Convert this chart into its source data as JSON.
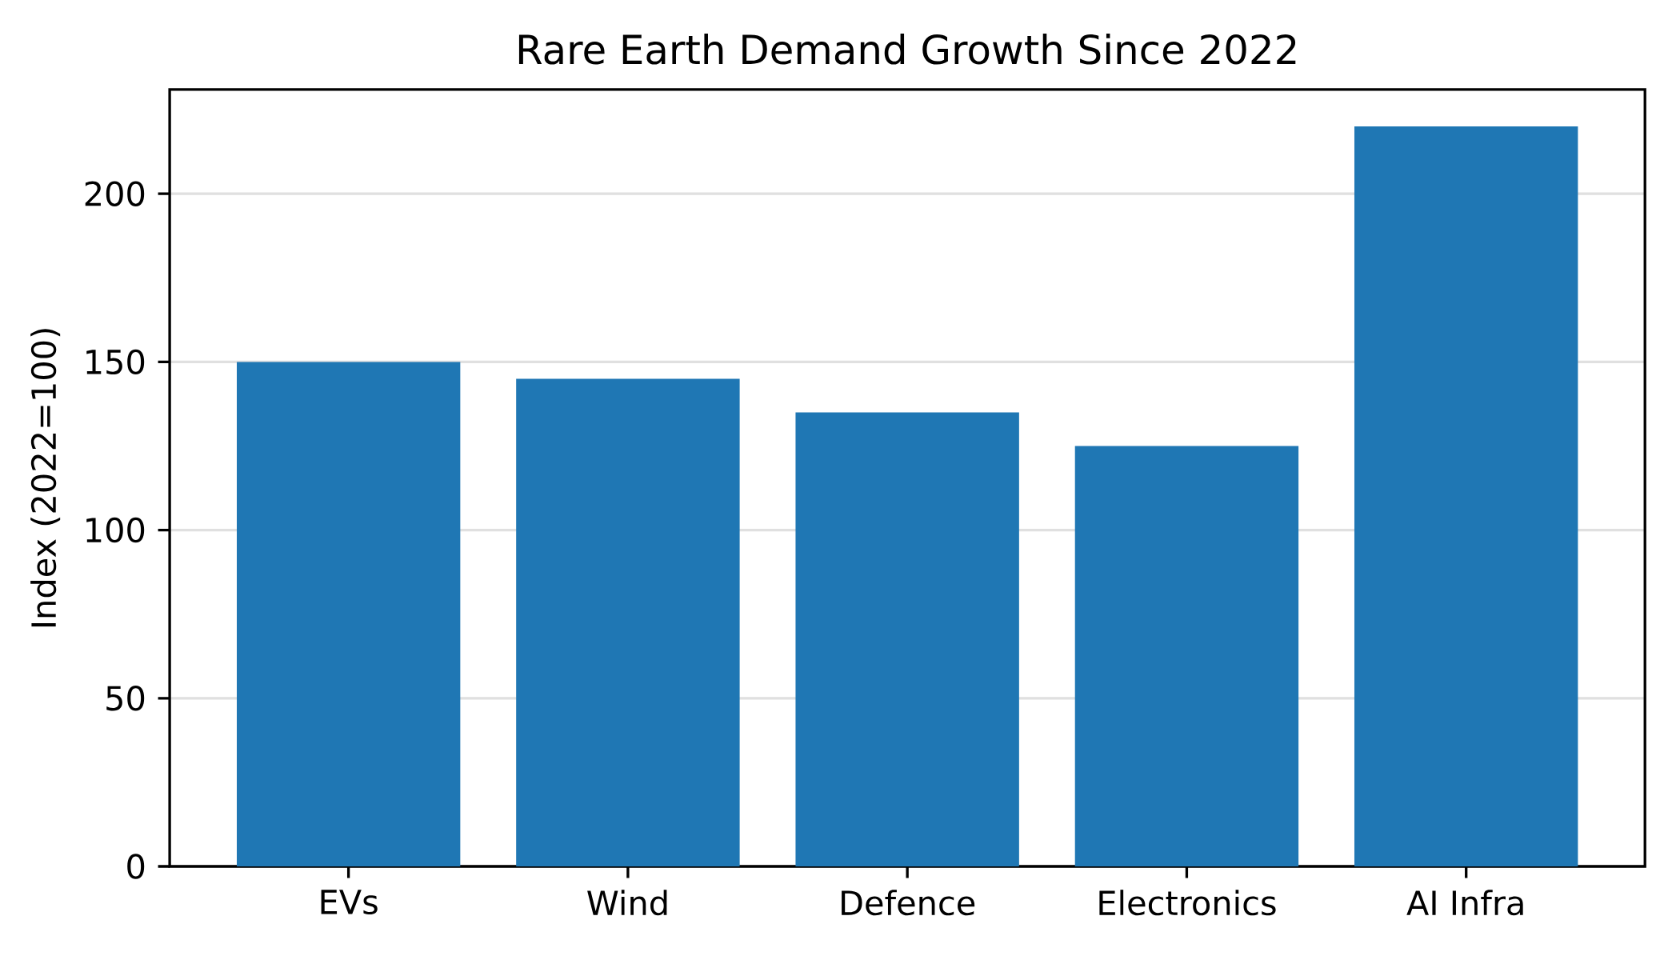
{
  "chart_data": {
    "type": "bar",
    "title": "Rare Earth Demand Growth Since 2022",
    "ylabel": "Index (2022=100)",
    "categories": [
      "EVs",
      "Wind",
      "Defence",
      "Electronics",
      "AI Infra"
    ],
    "values": [
      150,
      145,
      135,
      125,
      220
    ],
    "color": "#1f77b4",
    "ylim": [
      0,
      231
    ],
    "yticks": [
      0,
      50,
      100,
      150,
      200
    ],
    "grid": "y"
  }
}
